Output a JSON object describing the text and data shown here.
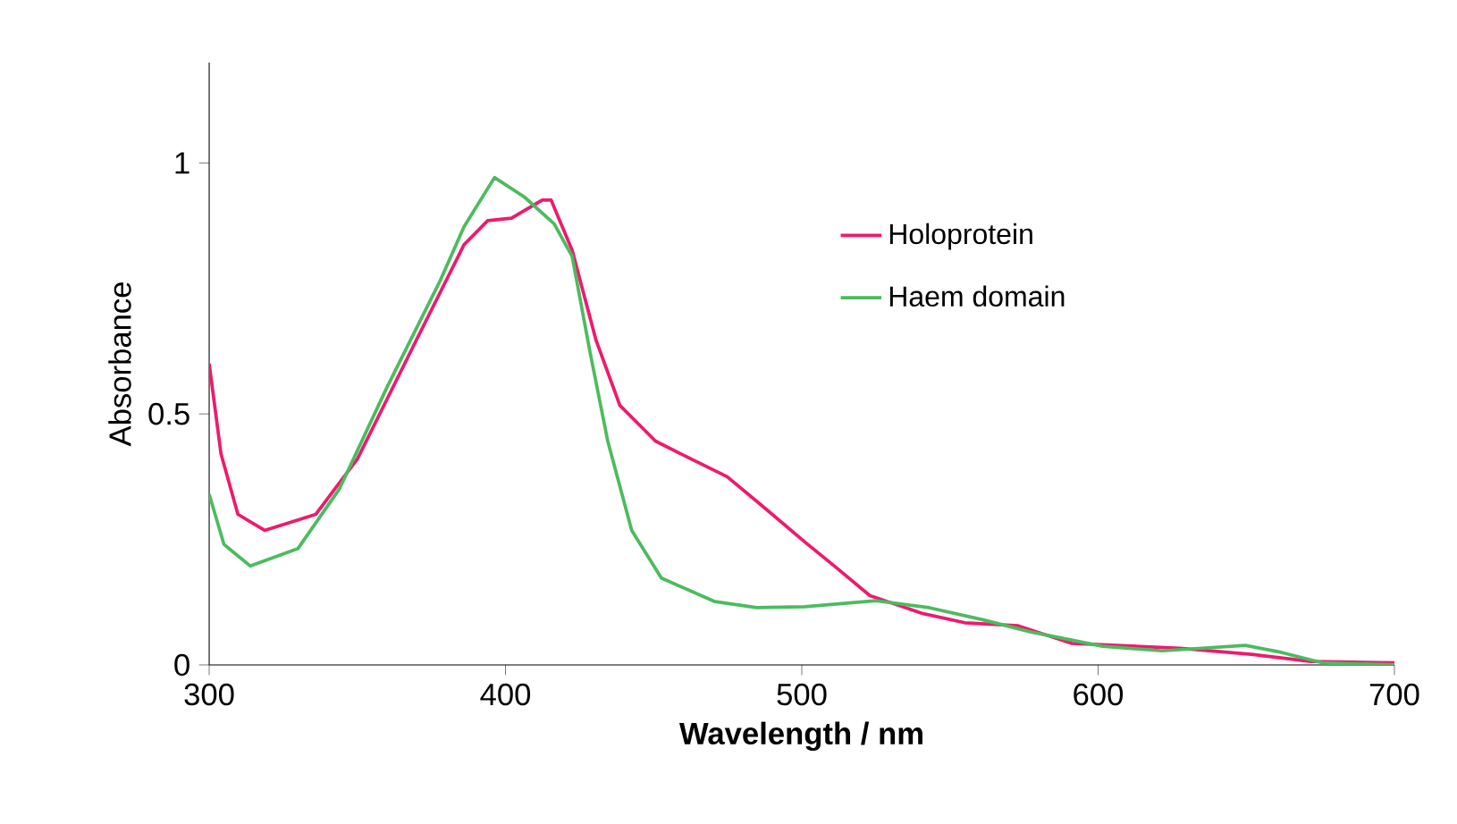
{
  "chart_data": {
    "type": "line",
    "xlabel": "Wavelength / nm",
    "ylabel": "Absorbance",
    "xlim": [
      300,
      700
    ],
    "ylim": [
      0,
      1.2
    ],
    "xticks": [
      300,
      400,
      500,
      600,
      700
    ],
    "yticks": [
      0,
      0.5,
      1
    ],
    "legend": "right",
    "grid": false,
    "marker": "none",
    "line_style": "solid",
    "series": [
      {
        "name": "Holoprotein",
        "color": "#ee1a6d",
        "x": [
          300,
          304,
          309.7,
          318.7,
          336,
          350,
          370,
          386,
          394,
          402,
          412.4,
          415.4,
          422.5,
          430.5,
          438.6,
          450.6,
          462.7,
          474.8,
          486.8,
          501,
          511,
          523,
          541,
          555,
          573,
          591,
          627.6,
          651.7,
          671.8,
          700
        ],
        "values": [
          0.6,
          0.42,
          0.3,
          0.268,
          0.3,
          0.41,
          0.648,
          0.837,
          0.885,
          0.89,
          0.926,
          0.926,
          0.826,
          0.648,
          0.517,
          0.446,
          0.41,
          0.375,
          0.316,
          0.245,
          0.197,
          0.138,
          0.102,
          0.084,
          0.078,
          0.043,
          0.033,
          0.021,
          0.007,
          0.004
        ]
      },
      {
        "name": "Haem domain",
        "color": "#4cbb5f",
        "x": [
          300,
          305,
          313.9,
          330,
          344,
          360,
          378,
          386,
          396.3,
          406.4,
          416.4,
          422.5,
          428.5,
          434.5,
          442.6,
          452.6,
          470.7,
          484.8,
          501,
          525,
          543,
          561,
          577,
          601.5,
          621.6,
          649.7,
          661.8,
          675.9,
          700
        ],
        "values": [
          0.34,
          0.24,
          0.197,
          0.232,
          0.351,
          0.553,
          0.766,
          0.873,
          0.971,
          0.932,
          0.879,
          0.814,
          0.624,
          0.446,
          0.268,
          0.173,
          0.126,
          0.114,
          0.116,
          0.128,
          0.114,
          0.09,
          0.066,
          0.037,
          0.028,
          0.039,
          0.025,
          0.004,
          0.0
        ]
      }
    ]
  }
}
